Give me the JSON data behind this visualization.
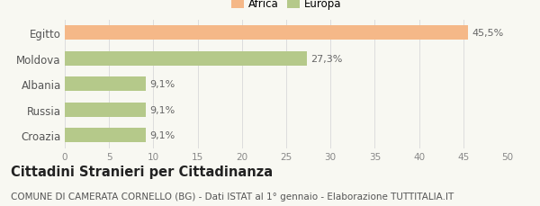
{
  "categories": [
    "Egitto",
    "Moldova",
    "Albania",
    "Russia",
    "Croazia"
  ],
  "values": [
    45.5,
    27.3,
    9.1,
    9.1,
    9.1
  ],
  "bar_colors": [
    "#f5b888",
    "#b5c98a",
    "#b5c98a",
    "#b5c98a",
    "#b5c98a"
  ],
  "labels": [
    "45,5%",
    "27,3%",
    "9,1%",
    "9,1%",
    "9,1%"
  ],
  "legend": [
    {
      "label": "Africa",
      "color": "#f5b888"
    },
    {
      "label": "Europa",
      "color": "#b5c98a"
    }
  ],
  "xlim": [
    0,
    50
  ],
  "xticks": [
    0,
    5,
    10,
    15,
    20,
    25,
    30,
    35,
    40,
    45,
    50
  ],
  "title": "Cittadini Stranieri per Cittadinanza",
  "subtitle": "COMUNE DI CAMERATA CORNELLO (BG) - Dati ISTAT al 1° gennaio - Elaborazione TUTTITALIA.IT",
  "bg_color": "#f8f8f2",
  "label_fontsize": 8,
  "title_fontsize": 10.5,
  "subtitle_fontsize": 7.5,
  "bar_height": 0.55
}
